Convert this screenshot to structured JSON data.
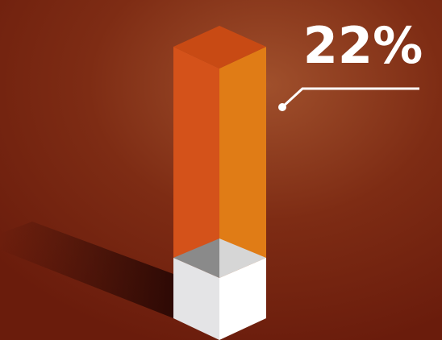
{
  "callout": {
    "label": "22%"
  }
}
